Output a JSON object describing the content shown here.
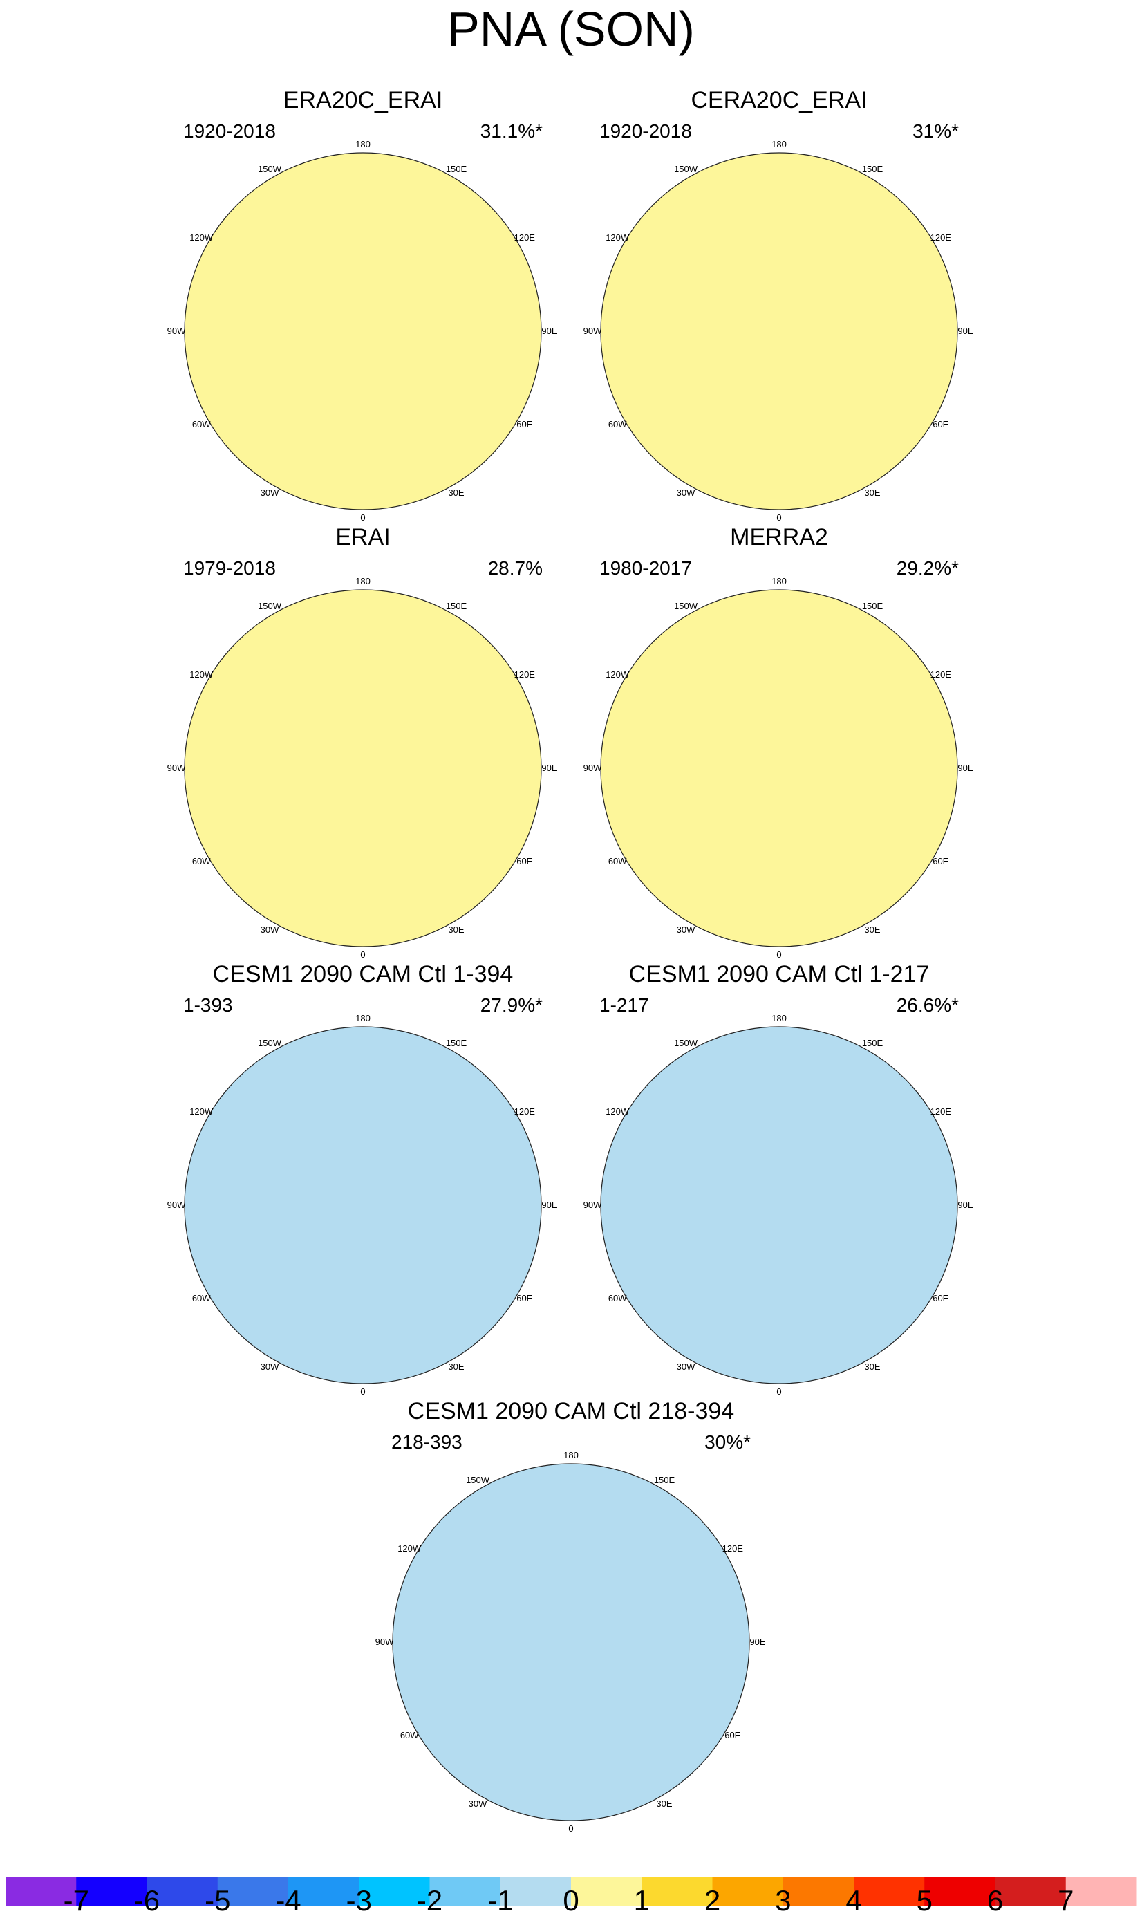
{
  "figure": {
    "title": "PNA (SON)",
    "lon_labels": [
      "180",
      "150E",
      "120E",
      "90E",
      "60E",
      "30E",
      "0",
      "30W",
      "60W",
      "90W",
      "120W",
      "150W"
    ]
  },
  "panels": [
    {
      "title": "ERA20C_ERAI",
      "period": "1920-2018",
      "variance": "31.1%*",
      "pattern": "reanalysis_long"
    },
    {
      "title": "CERA20C_ERAI",
      "period": "1920-2018",
      "variance": "31%*",
      "pattern": "reanalysis_long"
    },
    {
      "title": "ERAI",
      "period": "1979-2018",
      "variance": "28.7%",
      "pattern": "reanalysis_short"
    },
    {
      "title": "MERRA2",
      "period": "1980-2017",
      "variance": "29.2%*",
      "pattern": "reanalysis_short"
    },
    {
      "title": "CESM1 2090 CAM Ctl 1-394",
      "period": "1-393",
      "variance": "27.9%*",
      "pattern": "model"
    },
    {
      "title": "CESM1 2090 CAM Ctl 1-217",
      "period": "1-217",
      "variance": "26.6%*",
      "pattern": "model"
    },
    {
      "title": "CESM1 2090 CAM Ctl 218-394",
      "period": "218-393",
      "variance": "30%*",
      "pattern": "model"
    }
  ],
  "colorbar": {
    "labels": [
      "-7",
      "-6",
      "-5",
      "-4",
      "-3",
      "-2",
      "-1",
      "0",
      "1",
      "2",
      "3",
      "4",
      "5",
      "6",
      "7"
    ],
    "colors": [
      "#8a2be2",
      "#1400ff",
      "#2e49ea",
      "#3a78ea",
      "#1e96f5",
      "#00c3ff",
      "#6fc9f5",
      "#b4dcf0",
      "#fdf69a",
      "#fcd92e",
      "#fca600",
      "#fc7800",
      "#ff3200",
      "#ee0000",
      "#d41e1e",
      "#ffb4b4"
    ]
  },
  "chart_data": {
    "type": "polar_contour_map",
    "title": "PNA (SON)",
    "field": "PNA regression pattern, polar stereographic Northern Hemisphere",
    "contour_levels": [
      -7,
      -6,
      -5,
      -4,
      -3,
      -2,
      -1,
      0,
      1,
      2,
      3,
      4,
      5,
      6,
      7
    ],
    "panels": [
      {
        "name": "ERA20C_ERAI",
        "period": "1920-2018",
        "explained_variance_pct": 31.1,
        "significant": true
      },
      {
        "name": "CERA20C_ERAI",
        "period": "1920-2018",
        "explained_variance_pct": 31.0,
        "significant": true
      },
      {
        "name": "ERAI",
        "period": "1979-2018",
        "explained_variance_pct": 28.7,
        "significant": false
      },
      {
        "name": "MERRA2",
        "period": "1980-2017",
        "explained_variance_pct": 29.2,
        "significant": true
      },
      {
        "name": "CESM1 2090 CAM Ctl 1-394",
        "period": "1-393",
        "explained_variance_pct": 27.9,
        "significant": true
      },
      {
        "name": "CESM1 2090 CAM Ctl 1-217",
        "period": "1-217",
        "explained_variance_pct": 26.6,
        "significant": true
      },
      {
        "name": "CESM1 2090 CAM Ctl 218-394",
        "period": "218-393",
        "explained_variance_pct": 30.0,
        "significant": true
      }
    ]
  }
}
